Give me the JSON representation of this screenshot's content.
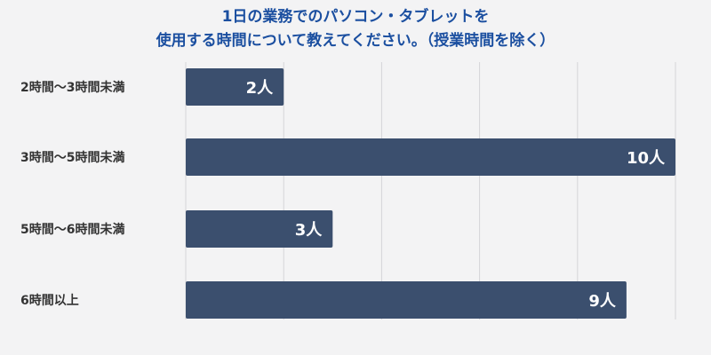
{
  "chart_data": {
    "type": "bar",
    "orientation": "horizontal",
    "title_lines": [
      "1日の業務でのパソコン・タブレットを",
      "使用する時間について教えてください。（授業時間を除く）"
    ],
    "categories": [
      "2時間〜3時間未満",
      "3時間〜5時間未満",
      "5時間〜6時間未満",
      "6時間以上"
    ],
    "values": [
      2,
      10,
      3,
      9
    ],
    "value_labels": [
      "2人",
      "10人",
      "3人",
      "9人"
    ],
    "unit": "人",
    "xlim": [
      0,
      10
    ],
    "grid": true,
    "colors": {
      "bar": "#3b4f6e",
      "grid": "#d4d4d8",
      "title": "#1b4fa0",
      "background": "#f3f3f4"
    }
  }
}
